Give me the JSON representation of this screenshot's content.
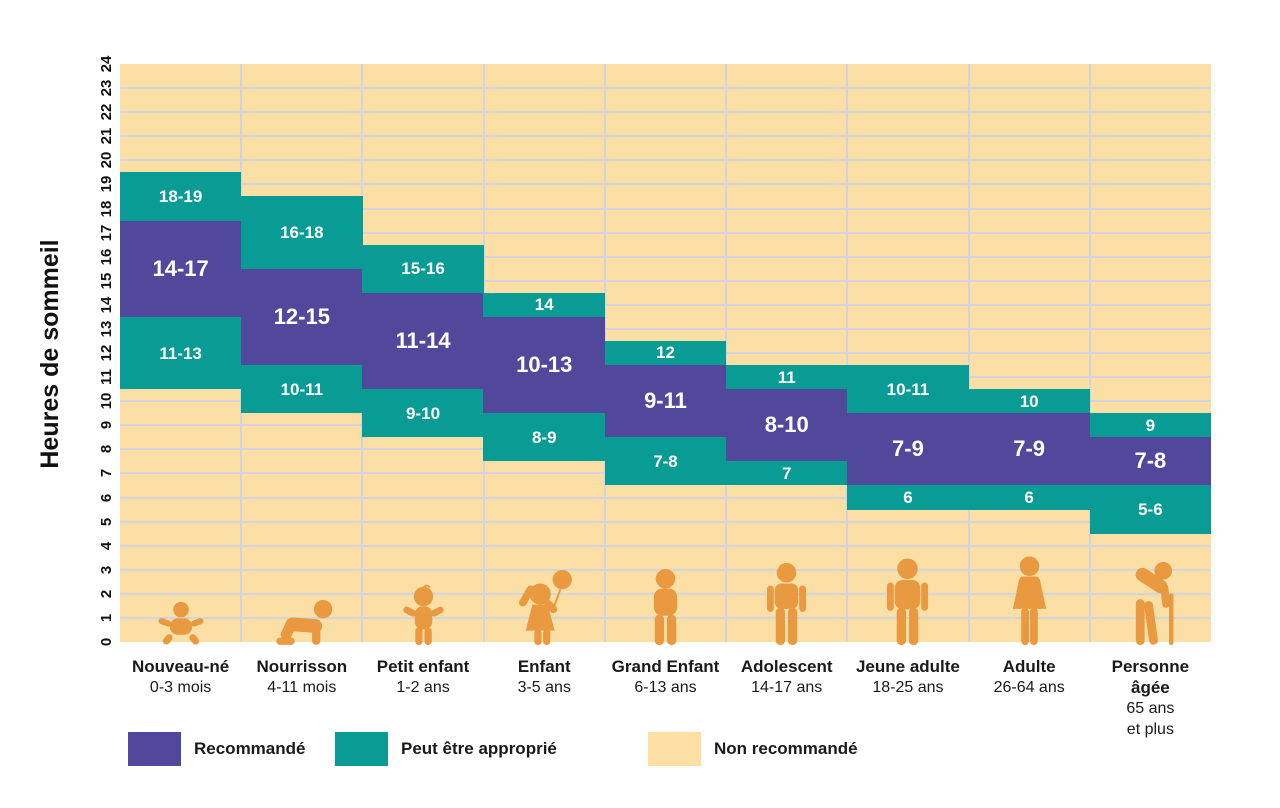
{
  "colors": {
    "recommended": "#52489B",
    "may_be_appropriate": "#089C94",
    "not_recommended": "#FBDFA4",
    "icon_orange": "#E9993F",
    "gridline": "#D2D4DF"
  },
  "y_axis": {
    "title": "Heures de sommeil",
    "min": 0,
    "max": 24,
    "ticks": [
      "0",
      "1",
      "2",
      "3",
      "4",
      "5",
      "6",
      "7",
      "8",
      "9",
      "10",
      "11",
      "12",
      "13",
      "14",
      "15",
      "16",
      "17",
      "18",
      "19",
      "20",
      "21",
      "22",
      "23",
      "24"
    ]
  },
  "legend": {
    "items": [
      {
        "key": "recommended",
        "label": "Recommandé"
      },
      {
        "key": "may_be_appropriate",
        "label": "Peut être approprié"
      },
      {
        "key": "not_recommended",
        "label": "Non recommandé"
      }
    ]
  },
  "chart_data": {
    "type": "bar",
    "subtype": "stacked-range-bands",
    "title": "",
    "xlabel": "",
    "ylabel": "Heures de sommeil",
    "ylim": [
      0,
      24
    ],
    "grid": true,
    "legend_position": "bottom",
    "band_value_convention": "a band labelled a-b spans from a-0.5 to b+0.5 hours; background = Non recommandé",
    "groups": [
      {
        "name": "Nouveau-né",
        "age": "0-3 mois",
        "icon": "newborn-icon",
        "bands": [
          {
            "kind": "may_be_appropriate",
            "label": "18-19",
            "from": 17.5,
            "to": 19.5
          },
          {
            "kind": "recommended",
            "label": "14-17",
            "from": 13.5,
            "to": 17.5
          },
          {
            "kind": "may_be_appropriate",
            "label": "11-13",
            "from": 10.5,
            "to": 13.5
          }
        ]
      },
      {
        "name": "Nourrisson",
        "age": "4-11 mois",
        "icon": "crawling-baby-icon",
        "bands": [
          {
            "kind": "may_be_appropriate",
            "label": "16-18",
            "from": 15.5,
            "to": 18.5
          },
          {
            "kind": "recommended",
            "label": "12-15",
            "from": 11.5,
            "to": 15.5
          },
          {
            "kind": "may_be_appropriate",
            "label": "10-11",
            "from": 9.5,
            "to": 11.5
          }
        ]
      },
      {
        "name": "Petit enfant",
        "age": "1-2 ans",
        "icon": "toddler-icon",
        "bands": [
          {
            "kind": "may_be_appropriate",
            "label": "15-16",
            "from": 14.5,
            "to": 16.5
          },
          {
            "kind": "recommended",
            "label": "11-14",
            "from": 10.5,
            "to": 14.5
          },
          {
            "kind": "may_be_appropriate",
            "label": "9-10",
            "from": 8.5,
            "to": 10.5
          }
        ]
      },
      {
        "name": "Enfant",
        "age": "3-5 ans",
        "icon": "child-balloon-icon",
        "bands": [
          {
            "kind": "may_be_appropriate",
            "label": "14",
            "from": 13.5,
            "to": 14.5
          },
          {
            "kind": "recommended",
            "label": "10-13",
            "from": 9.5,
            "to": 13.5
          },
          {
            "kind": "may_be_appropriate",
            "label": "8-9",
            "from": 7.5,
            "to": 9.5
          }
        ]
      },
      {
        "name": "Grand Enfant",
        "age": "6-13 ans",
        "icon": "child-icon",
        "bands": [
          {
            "kind": "may_be_appropriate",
            "label": "12",
            "from": 11.5,
            "to": 12.5
          },
          {
            "kind": "recommended",
            "label": "9-11",
            "from": 8.5,
            "to": 11.5
          },
          {
            "kind": "may_be_appropriate",
            "label": "7-8",
            "from": 6.5,
            "to": 8.5
          }
        ]
      },
      {
        "name": "Adolescent",
        "age": "14-17 ans",
        "icon": "teen-icon",
        "bands": [
          {
            "kind": "may_be_appropriate",
            "label": "11",
            "from": 10.5,
            "to": 11.5
          },
          {
            "kind": "recommended",
            "label": "8-10",
            "from": 7.5,
            "to": 10.5
          },
          {
            "kind": "may_be_appropriate",
            "label": "7",
            "from": 6.5,
            "to": 7.5
          }
        ]
      },
      {
        "name": "Jeune adulte",
        "age": "18-25 ans",
        "icon": "young-adult-icon",
        "bands": [
          {
            "kind": "may_be_appropriate",
            "label": "10-11",
            "from": 9.5,
            "to": 11.5
          },
          {
            "kind": "recommended",
            "label": "7-9",
            "from": 6.5,
            "to": 9.5
          },
          {
            "kind": "may_be_appropriate",
            "label": "6",
            "from": 5.5,
            "to": 6.5
          }
        ]
      },
      {
        "name": "Adulte",
        "age": "26-64 ans",
        "icon": "adult-woman-icon",
        "bands": [
          {
            "kind": "may_be_appropriate",
            "label": "10",
            "from": 9.5,
            "to": 10.5
          },
          {
            "kind": "recommended",
            "label": "7-9",
            "from": 6.5,
            "to": 9.5
          },
          {
            "kind": "may_be_appropriate",
            "label": "6",
            "from": 5.5,
            "to": 6.5
          }
        ]
      },
      {
        "name": "Personne âgée",
        "age": "65 ans\net plus",
        "icon": "elderly-icon",
        "bands": [
          {
            "kind": "may_be_appropriate",
            "label": "9",
            "from": 8.5,
            "to": 9.5
          },
          {
            "kind": "recommended",
            "label": "7-8",
            "from": 6.5,
            "to": 8.5
          },
          {
            "kind": "may_be_appropriate",
            "label": "5-6",
            "from": 4.5,
            "to": 6.5
          }
        ]
      }
    ]
  }
}
